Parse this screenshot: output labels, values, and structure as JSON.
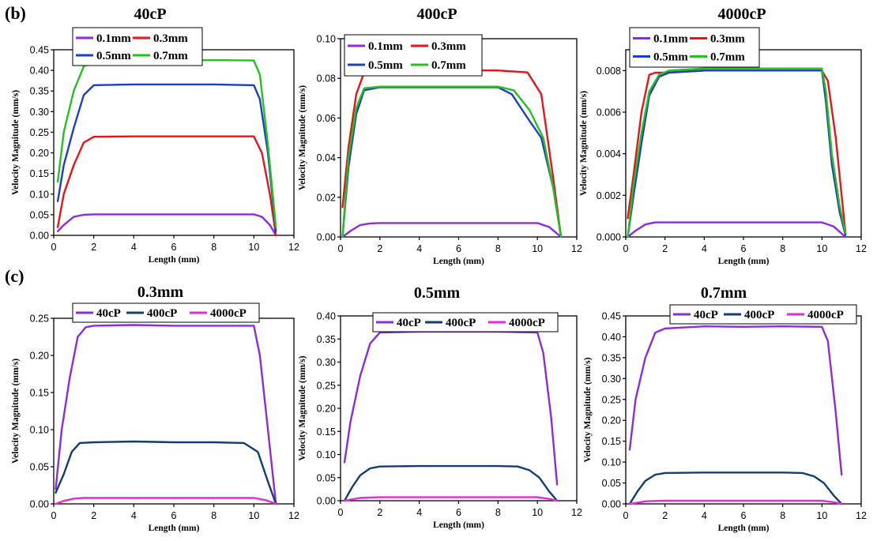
{
  "panel_labels": [
    "(b)",
    "(c)"
  ],
  "chart_data": [
    {
      "type": "line",
      "title": "40cP",
      "xlabel": "Length (mm)",
      "ylabel": "Velocity Magnitude (mm/s)",
      "xlim": [
        0,
        12
      ],
      "ylim": [
        0,
        0.45
      ],
      "xticks": [
        "0",
        "2",
        "4",
        "6",
        "8",
        "10",
        "12"
      ],
      "yticks": [
        "0.00",
        "0.05",
        "0.10",
        "0.15",
        "0.20",
        "0.25",
        "0.30",
        "0.35",
        "0.40",
        "0.45"
      ],
      "legend_rows": [
        [
          "0.1mm",
          "0.3mm"
        ],
        [
          "0.5mm",
          "0.7mm"
        ]
      ],
      "series": [
        {
          "name": "0.1mm",
          "color": "#8b2be2",
          "x": [
            0.2,
            0.5,
            1,
            1.5,
            2,
            4,
            6,
            8,
            10,
            10.4,
            10.8,
            11.1
          ],
          "y": [
            0.01,
            0.025,
            0.045,
            0.05,
            0.051,
            0.051,
            0.051,
            0.051,
            0.051,
            0.045,
            0.025,
            0.0
          ]
        },
        {
          "name": "0.3mm",
          "color": "#e8141b",
          "x": [
            0.2,
            0.5,
            1,
            1.5,
            2,
            4,
            6,
            8,
            10,
            10.4,
            10.8,
            11.1
          ],
          "y": [
            0.02,
            0.1,
            0.17,
            0.225,
            0.239,
            0.24,
            0.24,
            0.24,
            0.24,
            0.2,
            0.1,
            0.0
          ]
        },
        {
          "name": "0.5mm",
          "color": "#1d3fc6",
          "x": [
            0.2,
            0.5,
            1,
            1.5,
            2,
            4,
            6,
            8,
            10,
            10.3,
            10.7,
            11.1
          ],
          "y": [
            0.083,
            0.17,
            0.26,
            0.34,
            0.364,
            0.366,
            0.366,
            0.366,
            0.364,
            0.33,
            0.2,
            0.01
          ]
        },
        {
          "name": "0.7mm",
          "color": "#22c31e",
          "x": [
            0.2,
            0.5,
            1,
            1.5,
            2,
            4,
            6,
            8,
            10,
            10.3,
            10.7,
            11.1
          ],
          "y": [
            0.13,
            0.25,
            0.35,
            0.41,
            0.42,
            0.425,
            0.424,
            0.425,
            0.424,
            0.39,
            0.22,
            0.02
          ]
        }
      ]
    },
    {
      "type": "line",
      "title": "400cP",
      "xlabel": "Length (mm)",
      "ylabel": "Velocity Magnitude (mm/s)",
      "xlim": [
        0,
        12
      ],
      "ylim": [
        0,
        0.1
      ],
      "xticks": [
        "0",
        "2",
        "4",
        "6",
        "8",
        "10",
        "12"
      ],
      "yticks": [
        "0.00",
        "0.02",
        "0.04",
        "0.06",
        "0.08",
        "0.10"
      ],
      "legend_rows": [
        [
          "0.1mm",
          "0.3mm"
        ],
        [
          "0.5mm",
          "0.7mm"
        ]
      ],
      "series": [
        {
          "name": "0.1mm",
          "color": "#8b2be2",
          "x": [
            0.1,
            0.5,
            1,
            1.5,
            2,
            4,
            6,
            8,
            10,
            10.6,
            11.2
          ],
          "y": [
            0.0,
            0.003,
            0.006,
            0.0068,
            0.007,
            0.007,
            0.007,
            0.007,
            0.007,
            0.005,
            0.0
          ]
        },
        {
          "name": "0.3mm",
          "color": "#e8141b",
          "x": [
            0.1,
            0.4,
            0.8,
            1.2,
            2,
            4,
            6,
            8,
            9.5,
            10.2,
            10.8,
            11.2
          ],
          "y": [
            0.015,
            0.045,
            0.072,
            0.083,
            0.084,
            0.084,
            0.084,
            0.084,
            0.083,
            0.072,
            0.03,
            0.0
          ]
        },
        {
          "name": "0.5mm",
          "color": "#1d3fc6",
          "x": [
            0.1,
            0.4,
            0.8,
            1.2,
            2,
            4,
            6,
            8,
            8.7,
            9.5,
            10.2,
            10.8,
            11.2
          ],
          "y": [
            0.0,
            0.035,
            0.062,
            0.074,
            0.0755,
            0.0755,
            0.0755,
            0.0755,
            0.072,
            0.06,
            0.05,
            0.025,
            0.0
          ]
        },
        {
          "name": "0.7mm",
          "color": "#22c31e",
          "x": [
            0.1,
            0.4,
            0.8,
            1.2,
            2,
            4,
            6,
            8,
            8.8,
            9.6,
            10.3,
            10.8,
            11.2
          ],
          "y": [
            0.0,
            0.04,
            0.065,
            0.075,
            0.0758,
            0.0758,
            0.0758,
            0.0758,
            0.074,
            0.064,
            0.05,
            0.025,
            0.0
          ]
        }
      ]
    },
    {
      "type": "line",
      "title": "4000cP",
      "xlabel": "Length (mm)",
      "ylabel": "Velocity Magnitude (mm/s)",
      "xlim": [
        0,
        12
      ],
      "ylim": [
        0,
        0.009
      ],
      "xticks": [
        "0",
        "2",
        "4",
        "6",
        "8",
        "10",
        "12"
      ],
      "yticks": [
        "0.000",
        "0.002",
        "0.004",
        "0.006",
        "0.008"
      ],
      "legend_rows": [
        [
          "0.1mm",
          "0.3mm"
        ],
        [
          "0.5mm",
          "0.7mm"
        ]
      ],
      "series": [
        {
          "name": "0.1mm",
          "color": "#8b2be2",
          "x": [
            0.1,
            0.5,
            1,
            1.5,
            2,
            4,
            6,
            8,
            10,
            10.6,
            11.2
          ],
          "y": [
            0.0,
            0.0003,
            0.0006,
            0.0007,
            0.0007,
            0.0007,
            0.0007,
            0.0007,
            0.0007,
            0.0005,
            0.0
          ]
        },
        {
          "name": "0.3mm",
          "color": "#e8141b",
          "x": [
            0.1,
            0.4,
            0.8,
            1.2,
            1.5,
            2,
            4,
            6,
            8,
            10,
            10.3,
            10.7,
            11.0,
            11.2
          ],
          "y": [
            0.0009,
            0.003,
            0.006,
            0.0078,
            0.0079,
            0.0079,
            0.008,
            0.008,
            0.008,
            0.008,
            0.0075,
            0.0048,
            0.002,
            0.0002
          ]
        },
        {
          "name": "0.5mm",
          "color": "#1d3fc6",
          "x": [
            0.1,
            0.4,
            0.8,
            1.2,
            1.7,
            2.2,
            4,
            6,
            8,
            10,
            10.2,
            10.5,
            10.9,
            11.2
          ],
          "y": [
            0.0,
            0.002,
            0.0045,
            0.0068,
            0.0077,
            0.0079,
            0.008,
            0.008,
            0.008,
            0.008,
            0.0065,
            0.0035,
            0.0012,
            0.0001
          ]
        },
        {
          "name": "0.7mm",
          "color": "#22c31e",
          "x": [
            0.1,
            0.4,
            0.8,
            1.2,
            1.7,
            2.2,
            4,
            6,
            8,
            10,
            10.2,
            10.5,
            10.9,
            11.2
          ],
          "y": [
            0.0,
            0.0025,
            0.005,
            0.007,
            0.0078,
            0.008,
            0.0081,
            0.0081,
            0.0081,
            0.0081,
            0.007,
            0.004,
            0.0015,
            0.0002
          ]
        }
      ]
    },
    {
      "type": "line",
      "title": "0.3mm",
      "xlabel": "Length (mm)",
      "ylabel": "Velocity Magnitude (mm/s)",
      "xlim": [
        0,
        12
      ],
      "ylim": [
        0,
        0.25
      ],
      "xticks": [
        "0",
        "2",
        "4",
        "6",
        "8",
        "10",
        "12"
      ],
      "yticks": [
        "0.00",
        "0.05",
        "0.10",
        "0.15",
        "0.20",
        "0.25"
      ],
      "legend_rows": [
        [
          "40cP",
          "400cP",
          "4000cP"
        ]
      ],
      "series": [
        {
          "name": "40cP",
          "color": "#8b2be2",
          "x": [
            0.1,
            0.4,
            0.8,
            1.2,
            1.6,
            2,
            4,
            6,
            8,
            10,
            10.3,
            10.7,
            11.1
          ],
          "y": [
            0.02,
            0.1,
            0.17,
            0.225,
            0.238,
            0.24,
            0.241,
            0.24,
            0.24,
            0.24,
            0.2,
            0.1,
            0.0
          ]
        },
        {
          "name": "400cP",
          "color": "#133d73",
          "x": [
            0.1,
            0.5,
            0.9,
            1.3,
            2,
            4,
            6,
            8,
            9.5,
            10.2,
            10.7,
            11.1
          ],
          "y": [
            0.015,
            0.04,
            0.07,
            0.082,
            0.083,
            0.084,
            0.083,
            0.083,
            0.082,
            0.07,
            0.03,
            0.0
          ]
        },
        {
          "name": "4000cP",
          "color": "#e52bd4",
          "x": [
            0.1,
            0.5,
            1,
            1.5,
            2,
            4,
            6,
            8,
            10,
            10.6,
            11.1
          ],
          "y": [
            0.0,
            0.004,
            0.007,
            0.008,
            0.008,
            0.008,
            0.008,
            0.008,
            0.008,
            0.005,
            0.0
          ]
        }
      ]
    },
    {
      "type": "line",
      "title": "0.5mm",
      "xlabel": "Length (mm)",
      "ylabel": "Velocity Magnitude (mm/s)",
      "xlim": [
        0,
        12
      ],
      "ylim": [
        0,
        0.4
      ],
      "xticks": [
        "0",
        "2",
        "4",
        "6",
        "8",
        "10",
        "12"
      ],
      "yticks": [
        "0.00",
        "0.05",
        "0.10",
        "0.15",
        "0.20",
        "0.25",
        "0.30",
        "0.35",
        "0.40"
      ],
      "legend_rows": [
        [
          "40cP",
          "400cP",
          "4000cP"
        ]
      ],
      "series": [
        {
          "name": "40cP",
          "color": "#8b2be2",
          "x": [
            0.2,
            0.5,
            1,
            1.5,
            2,
            4,
            6,
            8,
            10,
            10.3,
            10.7,
            11.0
          ],
          "y": [
            0.083,
            0.17,
            0.27,
            0.34,
            0.364,
            0.366,
            0.366,
            0.366,
            0.364,
            0.32,
            0.18,
            0.035
          ]
        },
        {
          "name": "400cP",
          "color": "#133d73",
          "x": [
            0.2,
            0.6,
            1,
            1.5,
            2,
            4,
            6,
            8,
            9,
            9.6,
            10.1,
            10.6,
            11.0
          ],
          "y": [
            0.0,
            0.03,
            0.055,
            0.07,
            0.074,
            0.075,
            0.075,
            0.075,
            0.074,
            0.066,
            0.05,
            0.02,
            0.0
          ]
        },
        {
          "name": "4000cP",
          "color": "#e52bd4",
          "x": [
            0.2,
            0.6,
            1,
            1.5,
            2,
            4,
            6,
            8,
            10,
            10.6,
            11.0
          ],
          "y": [
            0.0,
            0.003,
            0.006,
            0.007,
            0.0075,
            0.0075,
            0.0075,
            0.0075,
            0.0075,
            0.004,
            0.0
          ]
        }
      ]
    },
    {
      "type": "line",
      "title": "0.7mm",
      "xlabel": "Length (mm)",
      "ylabel": "Velocity Magnitude (mm/s)",
      "xlim": [
        0,
        12
      ],
      "ylim": [
        0,
        0.45
      ],
      "xticks": [
        "0",
        "2",
        "4",
        "6",
        "8",
        "10",
        "12"
      ],
      "yticks": [
        "0.00",
        "0.05",
        "0.10",
        "0.15",
        "0.20",
        "0.25",
        "0.30",
        "0.35",
        "0.40",
        "0.45"
      ],
      "legend_rows": [
        [
          "40cP",
          "400cP",
          "4000cP"
        ]
      ],
      "series": [
        {
          "name": "40cP",
          "color": "#8b2be2",
          "x": [
            0.2,
            0.5,
            1,
            1.5,
            2,
            4,
            6,
            8,
            10,
            10.3,
            10.7,
            11.0
          ],
          "y": [
            0.13,
            0.25,
            0.35,
            0.41,
            0.42,
            0.425,
            0.424,
            0.425,
            0.424,
            0.39,
            0.22,
            0.07
          ]
        },
        {
          "name": "400cP",
          "color": "#133d73",
          "x": [
            0.2,
            0.6,
            1,
            1.5,
            2,
            4,
            6,
            8,
            9,
            9.6,
            10.1,
            10.6,
            11.0
          ],
          "y": [
            0.0,
            0.03,
            0.055,
            0.07,
            0.074,
            0.075,
            0.075,
            0.075,
            0.074,
            0.066,
            0.05,
            0.02,
            0.0
          ]
        },
        {
          "name": "4000cP",
          "color": "#e52bd4",
          "x": [
            0.2,
            0.6,
            1,
            1.5,
            2,
            4,
            6,
            8,
            10,
            10.6,
            11.0
          ],
          "y": [
            0.0,
            0.003,
            0.006,
            0.007,
            0.0075,
            0.0075,
            0.0075,
            0.0075,
            0.0075,
            0.004,
            0.0
          ]
        }
      ]
    }
  ]
}
